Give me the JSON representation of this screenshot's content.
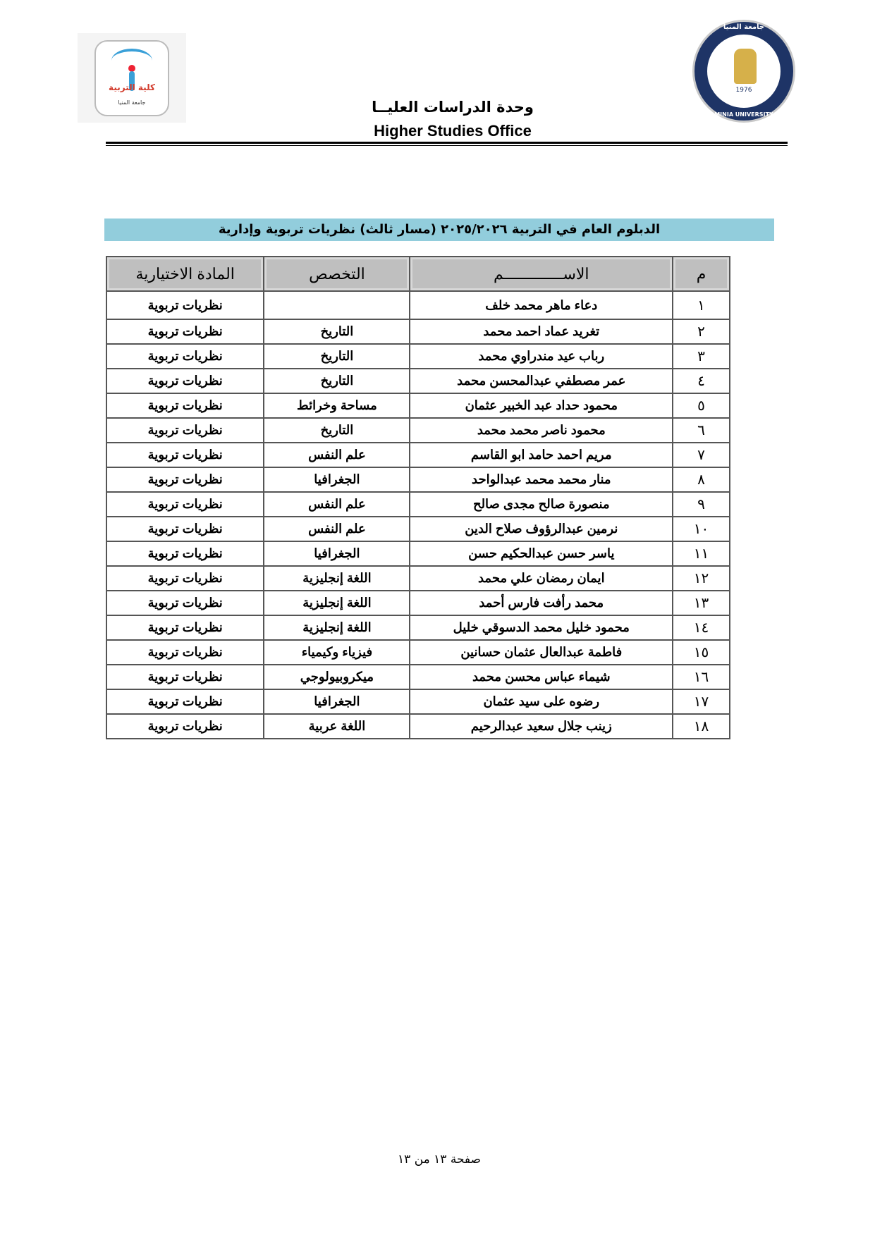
{
  "header": {
    "office_ar": "وحدة الدراسات العليــا",
    "office_en": "Higher Studies Office",
    "left_logo": {
      "name": "كلية التربية",
      "subtitle": "جامعة المنيا"
    },
    "right_logo": {
      "name_ar": "جامعة المنيا",
      "name_en": "MINIA UNIVERSITY",
      "year": "1976"
    }
  },
  "banner": {
    "title": "الدبلوم العام في التربية ٢٠٢٥/٢٠٢٦ (مسار ثالث) نظريات تربوية وإدارية",
    "color": "#92cddc"
  },
  "table": {
    "headers": [
      "م",
      "الاســـــــــــــم",
      "التخصص",
      "المادة الاختيارية"
    ],
    "rows": [
      [
        "١",
        "دعاء ماهر محمد خلف",
        "",
        "نظريات تربوية"
      ],
      [
        "٢",
        "تغريد عماد احمد محمد",
        "التاريخ",
        "نظريات تربوية"
      ],
      [
        "٣",
        "رباب عيد مندراوي محمد",
        "التاريخ",
        "نظريات تربوية"
      ],
      [
        "٤",
        "عمر مصطفي عبدالمحسن محمد",
        "التاريخ",
        "نظريات تربوية"
      ],
      [
        "٥",
        "محمود حداد عبد الخبير عثمان",
        "مساحة وخرائط",
        "نظريات تربوية"
      ],
      [
        "٦",
        "محمود ناصر محمد محمد",
        "التاريخ",
        "نظريات تربوية"
      ],
      [
        "٧",
        "مريم احمد حامد ابو القاسم",
        "علم النفس",
        "نظريات تربوية"
      ],
      [
        "٨",
        "منار محمد محمد عبدالواحد",
        "الجغرافيا",
        "نظريات تربوية"
      ],
      [
        "٩",
        "منصورة صالح مجدى صالح",
        "علم النفس",
        "نظريات تربوية"
      ],
      [
        "١٠",
        "نرمين عبدالرؤوف صلاح الدين",
        "علم النفس",
        "نظريات تربوية"
      ],
      [
        "١١",
        "ياسر حسن عبدالحكيم حسن",
        "الجغرافيا",
        "نظريات تربوية"
      ],
      [
        "١٢",
        "ايمان رمضان علي محمد",
        "اللغة إنجليزية",
        "نظريات تربوية"
      ],
      [
        "١٣",
        "محمد رأفت فارس أحمد",
        "اللغة إنجليزية",
        "نظريات تربوية"
      ],
      [
        "١٤",
        "محمود خليل محمد الدسوقي خليل",
        "اللغة إنجليزية",
        "نظريات تربوية"
      ],
      [
        "١٥",
        "فاطمة عبدالعال عثمان حسانين",
        "فيزياء وكيمياء",
        "نظريات تربوية"
      ],
      [
        "١٦",
        "شيماء عباس محسن محمد",
        "ميكروبيولوجي",
        "نظريات تربوية"
      ],
      [
        "١٧",
        "رضوه على سيد عثمان",
        "الجغرافيا",
        "نظريات تربوية"
      ],
      [
        "١٨",
        "زينب جلال سعيد عبدالرحيم",
        "اللغة عربية",
        "نظريات تربوية"
      ]
    ]
  },
  "footer": {
    "page": "صفحة ١٣ من ١٣"
  }
}
